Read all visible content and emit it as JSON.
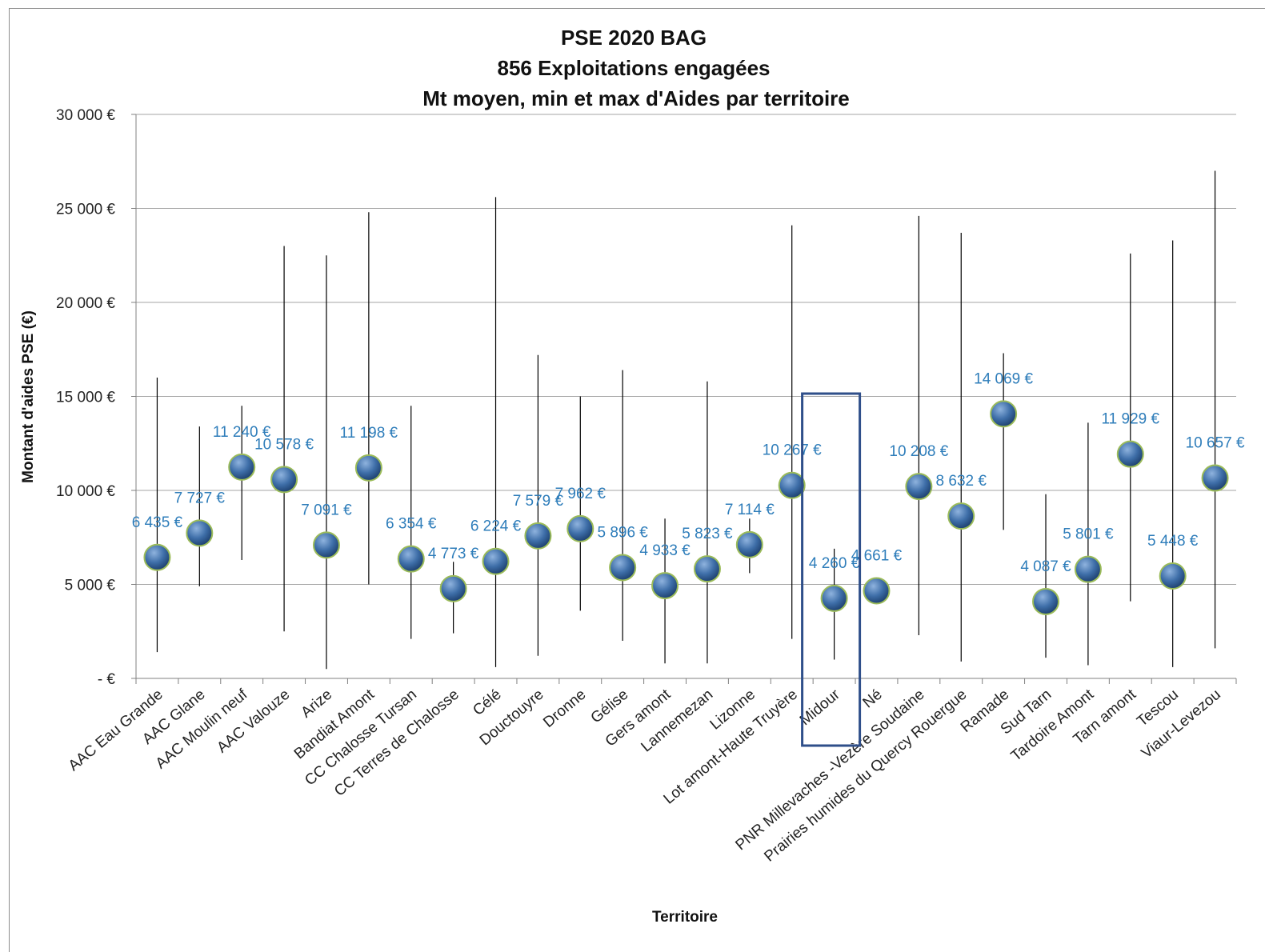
{
  "chart_data": {
    "type": "scatter",
    "title_lines": [
      "PSE 2020 BAG",
      "856 Exploitations engagées",
      "Mt moyen, min et max d'Aides par territoire"
    ],
    "xlabel": "Territoire",
    "ylabel": "Montant d'aides PSE (€)",
    "ylim": [
      0,
      30000
    ],
    "y_ticks": [
      {
        "value": 0,
        "label": "-  €"
      },
      {
        "value": 5000,
        "label": "5 000 €"
      },
      {
        "value": 10000,
        "label": "10 000 €"
      },
      {
        "value": 15000,
        "label": "15 000 €"
      },
      {
        "value": 20000,
        "label": "20 000 €"
      },
      {
        "value": 25000,
        "label": "25 000 €"
      },
      {
        "value": 30000,
        "label": "30 000 €"
      }
    ],
    "grid": true,
    "highlighted_category": "Midour",
    "colors": {
      "marker": "#3e6ea8",
      "marker_edge": "#9bbb59",
      "label": "#2e7dba",
      "highlight_box": "#2f4f8a",
      "range_line": "#000000",
      "grid": "#a6a6a6"
    },
    "categories": [
      "AAC Eau Grande",
      "AAC Glane",
      "AAC Moulin neuf",
      "AAC Valouze",
      "Arize",
      "Bandiat Amont",
      "CC Chalosse Tursan",
      "CC Terres de Chalosse",
      "Célé",
      "Douctouyre",
      "Dronne",
      "Gélise",
      "Gers amont",
      "Lannemezan",
      "Lizonne",
      "Lot amont-Haute Truyère",
      "Midour",
      "Né",
      "PNR Millevaches -Vezère Soudaine",
      "Prairies humides du Quercy Rouergue",
      "Ramade",
      "Sud Tarn",
      "Tardoire Amont",
      "Tarn amont",
      "Tescou",
      "Viaur-Levezou"
    ],
    "mean": [
      6435,
      7727,
      11240,
      10578,
      7091,
      11198,
      6354,
      4773,
      6224,
      7579,
      7962,
      5896,
      4933,
      5823,
      7114,
      10267,
      4260,
      4661,
      10208,
      8632,
      14069,
      4087,
      5801,
      11929,
      5448,
      10657
    ],
    "min": [
      1400,
      4900,
      6300,
      2500,
      500,
      5000,
      2100,
      2400,
      600,
      1200,
      3600,
      2000,
      800,
      800,
      5600,
      2100,
      1000,
      4661,
      2300,
      900,
      7900,
      1100,
      700,
      4100,
      600,
      1600
    ],
    "max": [
      16000,
      13400,
      14500,
      23000,
      22500,
      24800,
      14500,
      6200,
      25600,
      17200,
      15000,
      16400,
      8500,
      15800,
      8500,
      24100,
      6900,
      4661,
      24600,
      23700,
      17300,
      9800,
      13600,
      22600,
      23300,
      27000
    ],
    "mean_labels": [
      "6 435 €",
      "7 727 €",
      "11 240 €",
      "10 578 €",
      "7 091 €",
      "11 198 €",
      "6 354 €",
      "4 773 €",
      "6 224 €",
      "7 579 €",
      "7 962 €",
      "5 896 €",
      "4 933 €",
      "5 823 €",
      "7 114 €",
      "10 267 €",
      "4 260 €",
      "4 661 €",
      "10 208 €",
      "8 632 €",
      "14 069 €",
      "4 087 €",
      "5 801 €",
      "11 929 €",
      "5 448 €",
      "10 657 €"
    ]
  }
}
